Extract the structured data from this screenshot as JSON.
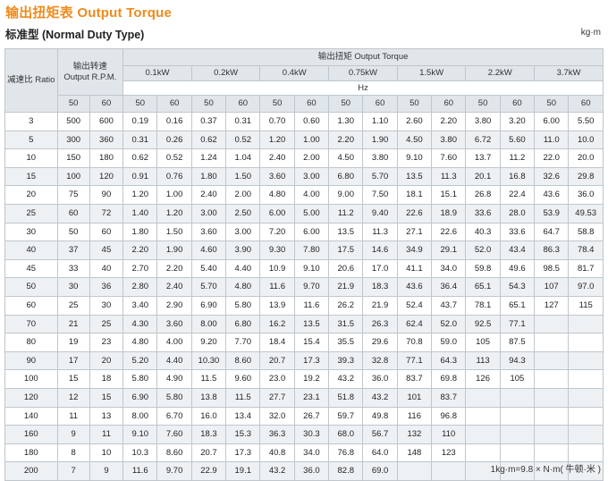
{
  "title": "输出扭矩表 Output Torque",
  "subtitle": "标准型 (Normal Duty Type)",
  "unit": "kg·m",
  "footnote": "1kg·m=9.8 × N·m( 牛顿·米 )",
  "table": {
    "ratio_header": "减速比 Ratio",
    "speed_header_cn": "输出转速",
    "speed_header_en": "Output R.P.M.",
    "torque_header": "输出扭矩 Output Torque",
    "hz_label": "Hz",
    "powers": [
      "0.1kW",
      "0.2kW",
      "0.4kW",
      "0.75kW",
      "1.5kW",
      "2.2kW",
      "3.7kW"
    ],
    "freqs": [
      "50",
      "60",
      "50",
      "60",
      "50",
      "60",
      "50",
      "60",
      "50",
      "60",
      "50",
      "60",
      "50",
      "60",
      "50",
      "60"
    ],
    "rows": [
      [
        "3",
        "500",
        "600",
        "0.19",
        "0.16",
        "0.37",
        "0.31",
        "0.70",
        "0.60",
        "1.30",
        "1.10",
        "2.60",
        "2.20",
        "3.80",
        "3.20",
        "6.00",
        "5.50"
      ],
      [
        "5",
        "300",
        "360",
        "0.31",
        "0.26",
        "0.62",
        "0.52",
        "1.20",
        "1.00",
        "2.20",
        "1.90",
        "4.50",
        "3.80",
        "6.72",
        "5.60",
        "11.0",
        "10.0"
      ],
      [
        "10",
        "150",
        "180",
        "0.62",
        "0.52",
        "1.24",
        "1.04",
        "2.40",
        "2.00",
        "4.50",
        "3.80",
        "9.10",
        "7.60",
        "13.7",
        "11.2",
        "22.0",
        "20.0"
      ],
      [
        "15",
        "100",
        "120",
        "0.91",
        "0.76",
        "1.80",
        "1.50",
        "3.60",
        "3.00",
        "6.80",
        "5.70",
        "13.5",
        "11.3",
        "20.1",
        "16.8",
        "32.6",
        "29.8"
      ],
      [
        "20",
        "75",
        "90",
        "1.20",
        "1.00",
        "2.40",
        "2.00",
        "4.80",
        "4.00",
        "9.00",
        "7.50",
        "18.1",
        "15.1",
        "26.8",
        "22.4",
        "43.6",
        "36.0"
      ],
      [
        "25",
        "60",
        "72",
        "1.40",
        "1.20",
        "3.00",
        "2.50",
        "6.00",
        "5.00",
        "11.2",
        "9.40",
        "22.6",
        "18.9",
        "33.6",
        "28.0",
        "53.9",
        "49.53"
      ],
      [
        "30",
        "50",
        "60",
        "1.80",
        "1.50",
        "3.60",
        "3.00",
        "7.20",
        "6.00",
        "13.5",
        "11.3",
        "27.1",
        "22.6",
        "40.3",
        "33.6",
        "64.7",
        "58.8"
      ],
      [
        "40",
        "37",
        "45",
        "2.20",
        "1.90",
        "4.60",
        "3.90",
        "9.30",
        "7.80",
        "17.5",
        "14.6",
        "34.9",
        "29.1",
        "52.0",
        "43.4",
        "86.3",
        "78.4"
      ],
      [
        "45",
        "33",
        "40",
        "2.70",
        "2.20",
        "5.40",
        "4.40",
        "10.9",
        "9.10",
        "20.6",
        "17.0",
        "41.1",
        "34.0",
        "59.8",
        "49.6",
        "98.5",
        "81.7"
      ],
      [
        "50",
        "30",
        "36",
        "2.80",
        "2.40",
        "5.70",
        "4.80",
        "11.6",
        "9.70",
        "21.9",
        "18.3",
        "43.6",
        "36.4",
        "65.1",
        "54.3",
        "107",
        "97.0"
      ],
      [
        "60",
        "25",
        "30",
        "3.40",
        "2.90",
        "6.90",
        "5.80",
        "13.9",
        "11.6",
        "26.2",
        "21.9",
        "52.4",
        "43.7",
        "78.1",
        "65.1",
        "127",
        "115"
      ],
      [
        "70",
        "21",
        "25",
        "4.30",
        "3.60",
        "8.00",
        "6.80",
        "16.2",
        "13.5",
        "31.5",
        "26.3",
        "62.4",
        "52.0",
        "92.5",
        "77.1",
        "",
        ""
      ],
      [
        "80",
        "19",
        "23",
        "4.80",
        "4.00",
        "9.20",
        "7.70",
        "18.4",
        "15.4",
        "35.5",
        "29.6",
        "70.8",
        "59.0",
        "105",
        "87.5",
        "",
        ""
      ],
      [
        "90",
        "17",
        "20",
        "5.20",
        "4.40",
        "10.30",
        "8.60",
        "20.7",
        "17.3",
        "39.3",
        "32.8",
        "77.1",
        "64.3",
        "113",
        "94.3",
        "",
        ""
      ],
      [
        "100",
        "15",
        "18",
        "5.80",
        "4.90",
        "11.5",
        "9.60",
        "23.0",
        "19.2",
        "43.2",
        "36.0",
        "83.7",
        "69.8",
        "126",
        "105",
        "",
        ""
      ],
      [
        "120",
        "12",
        "15",
        "6.90",
        "5.80",
        "13.8",
        "11.5",
        "27.7",
        "23.1",
        "51.8",
        "43.2",
        "101",
        "83.7",
        "",
        "",
        "",
        ""
      ],
      [
        "140",
        "11",
        "13",
        "8.00",
        "6.70",
        "16.0",
        "13.4",
        "32.0",
        "26.7",
        "59.7",
        "49.8",
        "116",
        "96.8",
        "",
        "",
        "",
        ""
      ],
      [
        "160",
        "9",
        "11",
        "9.10",
        "7.60",
        "18.3",
        "15.3",
        "36.3",
        "30.3",
        "68.0",
        "56.7",
        "132",
        "110",
        "",
        "",
        "",
        ""
      ],
      [
        "180",
        "8",
        "10",
        "10.3",
        "8.60",
        "20.7",
        "17.3",
        "40.8",
        "34.0",
        "76.8",
        "64.0",
        "148",
        "123",
        "",
        "",
        "",
        ""
      ],
      [
        "200",
        "7",
        "9",
        "11.6",
        "9.70",
        "22.9",
        "19.1",
        "43.2",
        "36.0",
        "82.8",
        "69.0",
        "",
        "",
        "",
        "",
        "",
        ""
      ]
    ]
  }
}
